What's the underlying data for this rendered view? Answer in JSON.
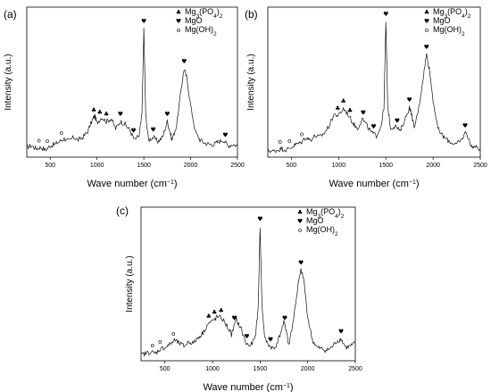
{
  "chart_data": [
    {
      "panel_label": "(a)",
      "type": "line",
      "xlabel": "Wave number (cm−1)",
      "ylabel": "Intensity (a.u.)",
      "xlim": [
        250,
        2500
      ],
      "x_ticks": [
        "500",
        "1000",
        "1500",
        "2000",
        "2500"
      ],
      "legend": [
        {
          "symbol": "♣",
          "label": "Mg3(PO4)2"
        },
        {
          "symbol": "♥",
          "label": "MgO"
        },
        {
          "symbol": "o",
          "label": "Mg(OH)2"
        }
      ],
      "legend_position": "top-right",
      "series": [
        {
          "values": [
            [
              250,
              0.07
            ],
            [
              300,
              0.08
            ],
            [
              350,
              0.06
            ],
            [
              400,
              0.07
            ],
            [
              450,
              0.05
            ],
            [
              500,
              0.08
            ],
            [
              550,
              0.09
            ],
            [
              600,
              0.11
            ],
            [
              650,
              0.13
            ],
            [
              700,
              0.11
            ],
            [
              750,
              0.14
            ],
            [
              800,
              0.12
            ],
            [
              850,
              0.14
            ],
            [
              900,
              0.18
            ],
            [
              950,
              0.26
            ],
            [
              975,
              0.29
            ],
            [
              1000,
              0.24
            ],
            [
              1050,
              0.28
            ],
            [
              1100,
              0.25
            ],
            [
              1150,
              0.27
            ],
            [
              1200,
              0.2
            ],
            [
              1250,
              0.25
            ],
            [
              1300,
              0.23
            ],
            [
              1350,
              0.19
            ],
            [
              1400,
              0.12
            ],
            [
              1450,
              0.15
            ],
            [
              1480,
              0.3
            ],
            [
              1500,
              0.9
            ],
            [
              1520,
              0.3
            ],
            [
              1550,
              0.12
            ],
            [
              1600,
              0.14
            ],
            [
              1650,
              0.11
            ],
            [
              1700,
              0.14
            ],
            [
              1750,
              0.25
            ],
            [
              1780,
              0.18
            ],
            [
              1800,
              0.12
            ],
            [
              1850,
              0.22
            ],
            [
              1900,
              0.48
            ],
            [
              1930,
              0.62
            ],
            [
              1960,
              0.55
            ],
            [
              2000,
              0.36
            ],
            [
              2050,
              0.18
            ],
            [
              2100,
              0.12
            ],
            [
              2150,
              0.1
            ],
            [
              2200,
              0.09
            ],
            [
              2250,
              0.09
            ],
            [
              2300,
              0.11
            ],
            [
              2350,
              0.12
            ],
            [
              2400,
              0.08
            ],
            [
              2450,
              0.09
            ],
            [
              2500,
              0.08
            ]
          ]
        }
      ],
      "annotations": [
        {
          "x": 380,
          "symbol": "o"
        },
        {
          "x": 470,
          "symbol": "o"
        },
        {
          "x": 620,
          "symbol": "o"
        },
        {
          "x": 965,
          "symbol": "♣"
        },
        {
          "x": 1030,
          "symbol": "♣"
        },
        {
          "x": 1100,
          "symbol": "♣"
        },
        {
          "x": 1250,
          "symbol": "♥"
        },
        {
          "x": 1390,
          "symbol": "♥"
        },
        {
          "x": 1500,
          "symbol": "♥"
        },
        {
          "x": 1600,
          "symbol": "♥"
        },
        {
          "x": 1750,
          "symbol": "♥"
        },
        {
          "x": 1930,
          "symbol": "♥"
        },
        {
          "x": 2370,
          "symbol": "♥"
        }
      ]
    },
    {
      "panel_label": "(b)",
      "type": "line",
      "xlabel": "Wave number (cm−1)",
      "ylabel": "Intensity (a.u.)",
      "xlim": [
        250,
        2500
      ],
      "x_ticks": [
        "500",
        "1000",
        "1500",
        "2000",
        "2500"
      ],
      "legend": [
        {
          "symbol": "♣",
          "label": "Mg3(PO4)2"
        },
        {
          "symbol": "♥",
          "label": "MgO"
        },
        {
          "symbol": "o",
          "label": "Mg(OH)2"
        }
      ],
      "legend_position": "top-right",
      "series": [
        {
          "values": [
            [
              250,
              0.05
            ],
            [
              300,
              0.04
            ],
            [
              350,
              0.05
            ],
            [
              400,
              0.06
            ],
            [
              450,
              0.05
            ],
            [
              500,
              0.07
            ],
            [
              550,
              0.09
            ],
            [
              600,
              0.1
            ],
            [
              650,
              0.14
            ],
            [
              700,
              0.12
            ],
            [
              750,
              0.15
            ],
            [
              800,
              0.14
            ],
            [
              850,
              0.17
            ],
            [
              900,
              0.22
            ],
            [
              950,
              0.3
            ],
            [
              1000,
              0.29
            ],
            [
              1050,
              0.34
            ],
            [
              1100,
              0.3
            ],
            [
              1150,
              0.24
            ],
            [
              1200,
              0.2
            ],
            [
              1250,
              0.27
            ],
            [
              1300,
              0.22
            ],
            [
              1350,
              0.17
            ],
            [
              1400,
              0.15
            ],
            [
              1450,
              0.22
            ],
            [
              1480,
              0.35
            ],
            [
              1500,
              0.95
            ],
            [
              1520,
              0.36
            ],
            [
              1550,
              0.2
            ],
            [
              1600,
              0.22
            ],
            [
              1650,
              0.18
            ],
            [
              1700,
              0.26
            ],
            [
              1750,
              0.35
            ],
            [
              1780,
              0.28
            ],
            [
              1800,
              0.2
            ],
            [
              1850,
              0.35
            ],
            [
              1900,
              0.58
            ],
            [
              1930,
              0.72
            ],
            [
              1960,
              0.62
            ],
            [
              2000,
              0.4
            ],
            [
              2050,
              0.2
            ],
            [
              2100,
              0.15
            ],
            [
              2150,
              0.12
            ],
            [
              2200,
              0.1
            ],
            [
              2250,
              0.09
            ],
            [
              2300,
              0.12
            ],
            [
              2350,
              0.18
            ],
            [
              2400,
              0.08
            ],
            [
              2450,
              0.07
            ],
            [
              2500,
              0.06
            ]
          ]
        }
      ],
      "annotations": [
        {
          "x": 380,
          "symbol": "o"
        },
        {
          "x": 480,
          "symbol": "o"
        },
        {
          "x": 610,
          "symbol": "o"
        },
        {
          "x": 990,
          "symbol": "♣"
        },
        {
          "x": 1050,
          "symbol": "♣"
        },
        {
          "x": 1120,
          "symbol": "♣"
        },
        {
          "x": 1260,
          "symbol": "♥"
        },
        {
          "x": 1370,
          "symbol": "♥"
        },
        {
          "x": 1500,
          "symbol": "♥"
        },
        {
          "x": 1620,
          "symbol": "♥"
        },
        {
          "x": 1750,
          "symbol": "♥"
        },
        {
          "x": 1930,
          "symbol": "♥"
        },
        {
          "x": 2340,
          "symbol": "♥"
        }
      ]
    },
    {
      "panel_label": "(c)",
      "type": "line",
      "xlabel": "Wave number (cm−1)",
      "ylabel": "Intensity (a.u.)",
      "xlim": [
        250,
        2500
      ],
      "x_ticks": [
        "500",
        "1000",
        "1500",
        "2000",
        "2500"
      ],
      "legend": [
        {
          "symbol": "♣",
          "label": "Mg3(PO4)2"
        },
        {
          "symbol": "♥",
          "label": "MgO"
        },
        {
          "symbol": "o",
          "label": "Mg(OH)2"
        }
      ],
      "legend_position": "top-right",
      "series": [
        {
          "values": [
            [
              250,
              0.04
            ],
            [
              300,
              0.05
            ],
            [
              350,
              0.06
            ],
            [
              400,
              0.05
            ],
            [
              450,
              0.08
            ],
            [
              500,
              0.09
            ],
            [
              550,
              0.11
            ],
            [
              600,
              0.14
            ],
            [
              650,
              0.12
            ],
            [
              700,
              0.1
            ],
            [
              750,
              0.13
            ],
            [
              800,
              0.12
            ],
            [
              850,
              0.16
            ],
            [
              900,
              0.19
            ],
            [
              950,
              0.25
            ],
            [
              1000,
              0.27
            ],
            [
              1050,
              0.3
            ],
            [
              1100,
              0.29
            ],
            [
              1150,
              0.24
            ],
            [
              1200,
              0.18
            ],
            [
              1250,
              0.28
            ],
            [
              1300,
              0.22
            ],
            [
              1350,
              0.12
            ],
            [
              1400,
              0.1
            ],
            [
              1450,
              0.16
            ],
            [
              1480,
              0.36
            ],
            [
              1500,
              0.92
            ],
            [
              1520,
              0.38
            ],
            [
              1550,
              0.15
            ],
            [
              1600,
              0.1
            ],
            [
              1650,
              0.08
            ],
            [
              1700,
              0.16
            ],
            [
              1750,
              0.26
            ],
            [
              1780,
              0.2
            ],
            [
              1800,
              0.1
            ],
            [
              1850,
              0.28
            ],
            [
              1900,
              0.52
            ],
            [
              1930,
              0.62
            ],
            [
              1960,
              0.55
            ],
            [
              2000,
              0.3
            ],
            [
              2050,
              0.14
            ],
            [
              2100,
              0.09
            ],
            [
              2150,
              0.08
            ],
            [
              2200,
              0.07
            ],
            [
              2250,
              0.09
            ],
            [
              2300,
              0.13
            ],
            [
              2350,
              0.15
            ],
            [
              2400,
              0.09
            ],
            [
              2450,
              0.1
            ],
            [
              2500,
              0.12
            ]
          ]
        }
      ],
      "annotations": [
        {
          "x": 370,
          "symbol": "o"
        },
        {
          "x": 450,
          "symbol": "o"
        },
        {
          "x": 590,
          "symbol": "o"
        },
        {
          "x": 960,
          "symbol": "♣"
        },
        {
          "x": 1020,
          "symbol": "♣"
        },
        {
          "x": 1090,
          "symbol": "♣"
        },
        {
          "x": 1230,
          "symbol": "♥"
        },
        {
          "x": 1360,
          "symbol": "♥"
        },
        {
          "x": 1500,
          "symbol": "♥"
        },
        {
          "x": 1610,
          "symbol": "♥"
        },
        {
          "x": 1760,
          "symbol": "♥"
        },
        {
          "x": 1930,
          "symbol": "♥"
        },
        {
          "x": 2350,
          "symbol": "♥"
        }
      ]
    }
  ]
}
